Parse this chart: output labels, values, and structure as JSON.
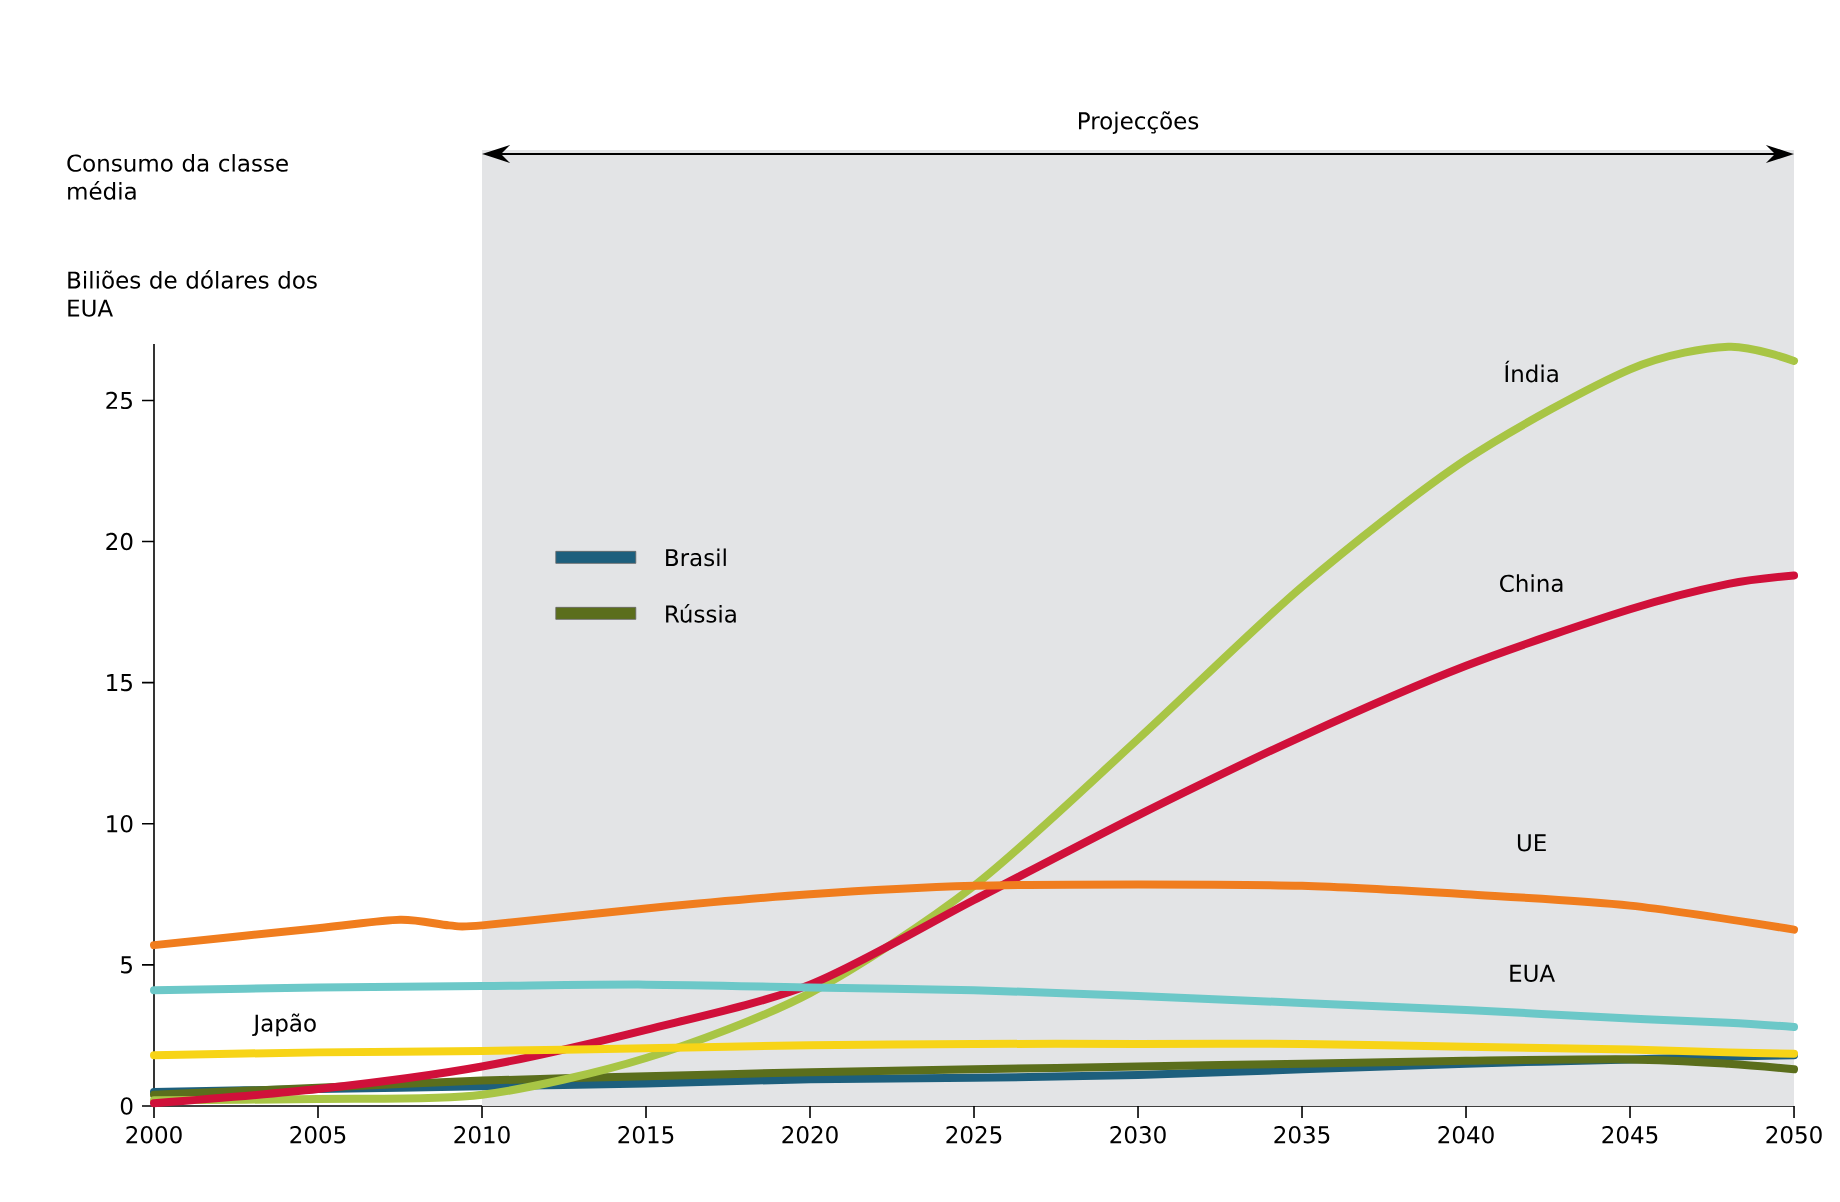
{
  "chart_data": {
    "type": "line",
    "title": "Consumo da classe média",
    "ylabel": "Biliões de dólares dos EUA",
    "x": [
      2000,
      2005,
      2010,
      2015,
      2020,
      2025,
      2030,
      2035,
      2040,
      2045,
      2048,
      2050
    ],
    "series": [
      {
        "name": "Brasil",
        "color": "#1d5f7d",
        "values": [
          0.5,
          0.6,
          0.7,
          0.8,
          0.95,
          1.0,
          1.1,
          1.3,
          1.5,
          1.65,
          1.75,
          1.8
        ]
      },
      {
        "name": "Rússia",
        "color": "#5b6e1c",
        "values": [
          0.4,
          0.65,
          0.9,
          1.05,
          1.2,
          1.3,
          1.4,
          1.5,
          1.6,
          1.65,
          1.5,
          1.3
        ]
      },
      {
        "name": "Índia",
        "color": "#a8c545",
        "values": [
          0.2,
          0.25,
          0.4,
          1.7,
          4.0,
          7.8,
          13.0,
          18.4,
          22.9,
          26.1,
          26.9,
          26.4
        ]
      },
      {
        "name": "China",
        "color": "#d0103a",
        "values": [
          0.1,
          0.6,
          1.4,
          2.7,
          4.3,
          7.3,
          10.3,
          13.1,
          15.6,
          17.6,
          18.5,
          18.8
        ]
      },
      {
        "name": "UE",
        "color": "#f07d1e",
        "x": [
          2000,
          2005,
          2007.5,
          2009,
          2010,
          2015,
          2020,
          2025,
          2030,
          2035,
          2040,
          2045,
          2050
        ],
        "values": [
          5.7,
          6.3,
          6.6,
          6.4,
          6.4,
          7.0,
          7.5,
          7.8,
          7.85,
          7.8,
          7.5,
          7.1,
          6.25
        ]
      },
      {
        "name": "EUA",
        "color": "#6cc8c8",
        "values": [
          4.1,
          4.2,
          4.25,
          4.3,
          4.2,
          4.1,
          3.9,
          3.65,
          3.4,
          3.1,
          2.95,
          2.8
        ]
      },
      {
        "name": "Japão",
        "color": "#f7d417",
        "values": [
          1.8,
          1.9,
          1.95,
          2.05,
          2.15,
          2.2,
          2.2,
          2.2,
          2.1,
          2.0,
          1.9,
          1.85
        ]
      }
    ],
    "xlim": [
      2000,
      2050
    ],
    "ylim": [
      0,
      27
    ],
    "xticks": [
      2000,
      2005,
      2010,
      2015,
      2020,
      2025,
      2030,
      2035,
      2040,
      2045,
      2050
    ],
    "yticks": [
      0,
      5,
      10,
      15,
      20,
      25
    ],
    "bands": [
      {
        "axis": "x",
        "from": 2010,
        "to": 2050,
        "label": "Projecções",
        "color": "#e3e4e6"
      }
    ],
    "legend": "top left",
    "grid": false,
    "marker": "none",
    "line_style": "solid"
  }
}
